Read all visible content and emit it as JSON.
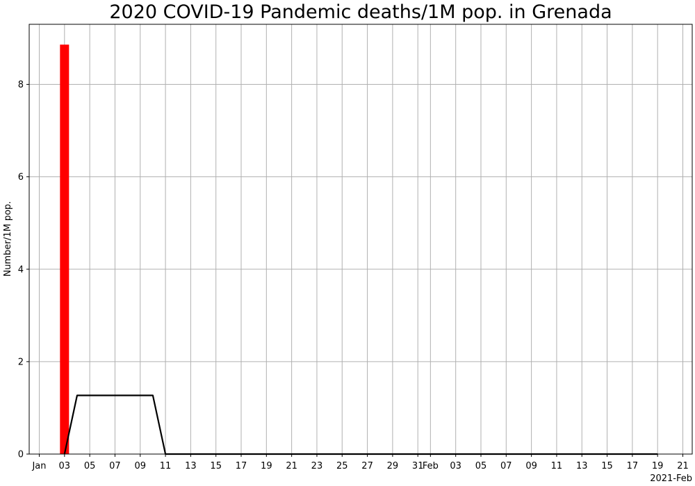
{
  "chart_data": {
    "type": "bar",
    "title": "2020 COVID-19 Pandemic deaths/1M pop. in Grenada",
    "ylabel": "Number/1M pop.",
    "xlabel": "",
    "x_offset_label": "2021-Feb",
    "ylim": [
      0,
      9.3
    ],
    "y_ticks": [
      0,
      2,
      4,
      6,
      8
    ],
    "grid": true,
    "x_ticks": [
      {
        "date": "2021-01-01",
        "label": "Jan"
      },
      {
        "date": "2021-01-03",
        "label": "03"
      },
      {
        "date": "2021-01-05",
        "label": "05"
      },
      {
        "date": "2021-01-07",
        "label": "07"
      },
      {
        "date": "2021-01-09",
        "label": "09"
      },
      {
        "date": "2021-01-11",
        "label": "11"
      },
      {
        "date": "2021-01-13",
        "label": "13"
      },
      {
        "date": "2021-01-15",
        "label": "15"
      },
      {
        "date": "2021-01-17",
        "label": "17"
      },
      {
        "date": "2021-01-19",
        "label": "19"
      },
      {
        "date": "2021-01-21",
        "label": "21"
      },
      {
        "date": "2021-01-23",
        "label": "23"
      },
      {
        "date": "2021-01-25",
        "label": "25"
      },
      {
        "date": "2021-01-27",
        "label": "27"
      },
      {
        "date": "2021-01-29",
        "label": "29"
      },
      {
        "date": "2021-01-31",
        "label": "31"
      },
      {
        "date": "2021-02-01",
        "label": "Feb"
      },
      {
        "date": "2021-02-03",
        "label": "03"
      },
      {
        "date": "2021-02-05",
        "label": "05"
      },
      {
        "date": "2021-02-07",
        "label": "07"
      },
      {
        "date": "2021-02-09",
        "label": "09"
      },
      {
        "date": "2021-02-11",
        "label": "11"
      },
      {
        "date": "2021-02-13",
        "label": "13"
      },
      {
        "date": "2021-02-15",
        "label": "15"
      },
      {
        "date": "2021-02-17",
        "label": "17"
      },
      {
        "date": "2021-02-19",
        "label": "19"
      },
      {
        "date": "2021-02-21",
        "label": "21"
      }
    ],
    "bars": {
      "color": "#ff0000",
      "points": [
        {
          "date": "2021-01-03",
          "value": 8.86
        }
      ]
    },
    "line": {
      "color": "#000000",
      "points": [
        {
          "date": "2021-01-03",
          "value": 0
        },
        {
          "date": "2021-01-04",
          "value": 1.27
        },
        {
          "date": "2021-01-10",
          "value": 1.27
        },
        {
          "date": "2021-01-11",
          "value": 0
        },
        {
          "date": "2021-02-19",
          "value": 0
        }
      ]
    }
  }
}
